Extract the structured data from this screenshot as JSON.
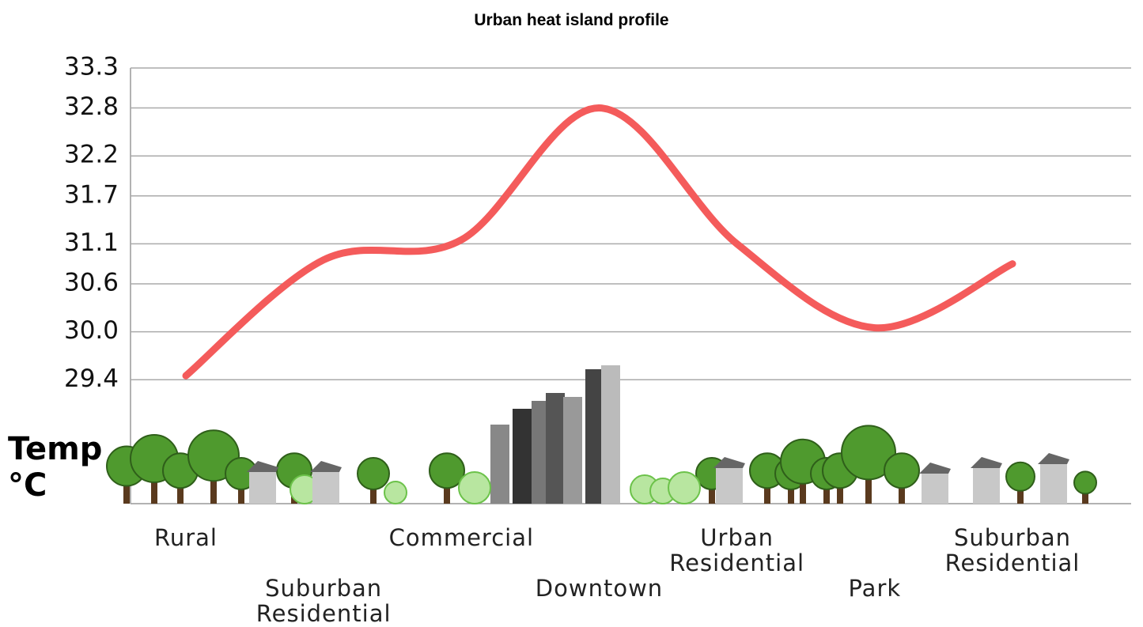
{
  "chart_data": {
    "type": "line",
    "title": "Urban heat island profile",
    "y_label": "Temp °C",
    "categories": [
      "Rural",
      "Suburban Residential",
      "Commercial",
      "Downtown",
      "Urban Residential",
      "Park",
      "Suburban Residential"
    ],
    "values": [
      29.45,
      30.9,
      31.15,
      32.8,
      31.1,
      30.05,
      30.85
    ],
    "color": "#f45b5b",
    "ylim": [
      27.85,
      33.3
    ],
    "yticks": [
      29.4,
      {
        "value": 30,
        "label": "30.0"
      },
      30.6,
      31.1,
      31.7,
      32.2,
      32.8,
      33.3
    ],
    "grid": true
  }
}
